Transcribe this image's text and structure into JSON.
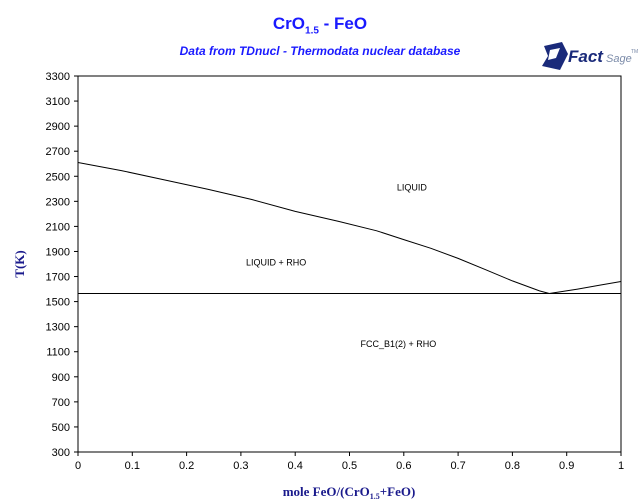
{
  "title_main": "CrO",
  "title_sub": "1.5",
  "title_rest": " - FeO",
  "subtitle": "Data from TDnucl - Thermodata nuclear database",
  "logo": {
    "word1": "Fact",
    "word2": "Sage",
    "mark": "TM",
    "colors": {
      "primary": "#1a2a7a",
      "secondary": "#7a8aa8"
    }
  },
  "chart_data": {
    "type": "line",
    "title": "CrO1.5 - FeO",
    "subtitle": "Data from TDnucl - Thermodata nuclear database",
    "xlabel": {
      "pre": "mole FeO/(CrO",
      "sub": "1.5",
      "post": "+FeO)"
    },
    "ylabel": "T(K)",
    "xlim": [
      0,
      1
    ],
    "ylim": [
      300,
      3300
    ],
    "xticks": [
      "0",
      "0.1",
      "0.2",
      "0.3",
      "0.4",
      "0.5",
      "0.6",
      "0.7",
      "0.8",
      "0.9",
      "1"
    ],
    "yticks": [
      "300",
      "500",
      "700",
      "900",
      "1100",
      "1300",
      "1500",
      "1700",
      "1900",
      "2100",
      "2300",
      "2500",
      "2700",
      "2900",
      "3100",
      "3300"
    ],
    "series": [
      {
        "values": [
          [
            0,
            2610
          ],
          [
            0.08,
            2545
          ],
          [
            0.16,
            2470
          ],
          [
            0.24,
            2395
          ],
          [
            0.32,
            2315
          ],
          [
            0.4,
            2220
          ],
          [
            0.48,
            2140
          ],
          [
            0.55,
            2065
          ],
          [
            0.6,
            1995
          ],
          [
            0.65,
            1925
          ],
          [
            0.7,
            1845
          ],
          [
            0.75,
            1755
          ],
          [
            0.8,
            1665
          ],
          [
            0.85,
            1585
          ],
          [
            0.868,
            1565
          ]
        ]
      },
      {
        "values": [
          [
            0.868,
            1565
          ],
          [
            0.92,
            1600
          ],
          [
            0.96,
            1630
          ],
          [
            1.0,
            1660
          ]
        ]
      },
      {
        "values": [
          [
            0,
            1565
          ],
          [
            1,
            1565
          ]
        ]
      }
    ],
    "regions": [
      {
        "label": "LIQUID",
        "x": 0.615,
        "y": 2410
      },
      {
        "label": "LIQUID + RHO",
        "x": 0.365,
        "y": 1810
      },
      {
        "label": "FCC_B1(2) + RHO",
        "x": 0.59,
        "y": 1160
      }
    ],
    "line_color": "#000000",
    "grid": false
  }
}
